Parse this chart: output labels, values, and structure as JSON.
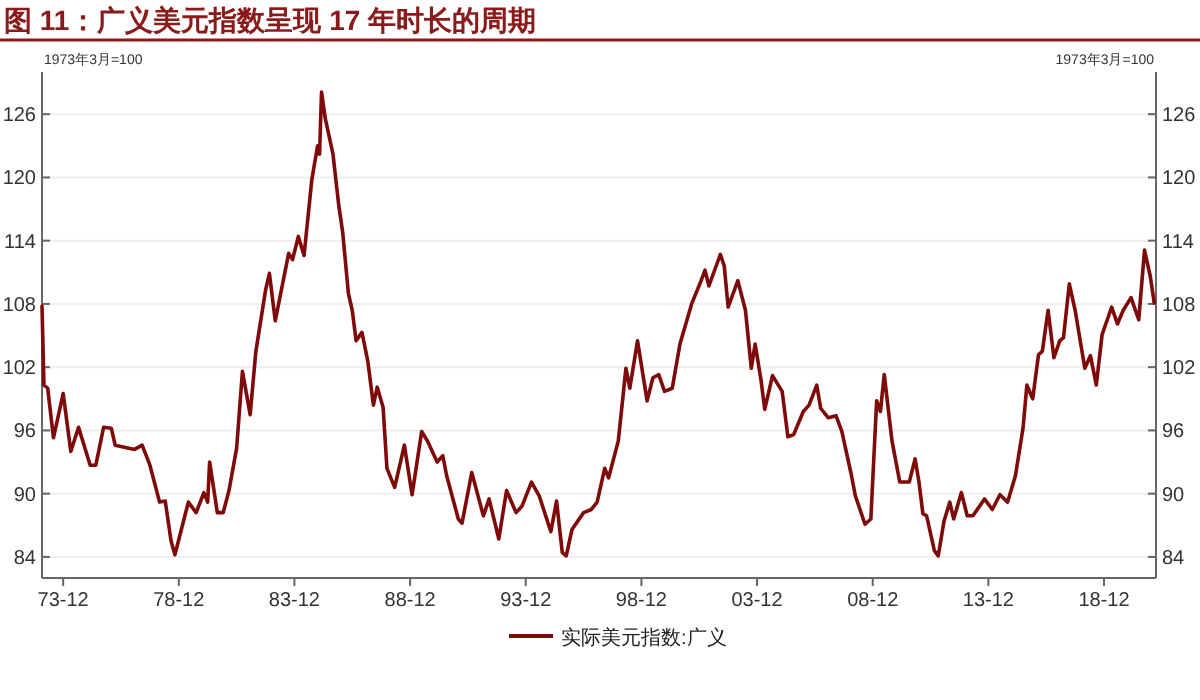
{
  "chart_data": {
    "type": "line",
    "title": "图 11：广义美元指数呈现 17 年时长的周期",
    "ylabel": "1973年3月=100",
    "y2label": "1973年3月=100",
    "x": [
      "1973-01",
      "1973-02",
      "1973-04",
      "1973-07",
      "1973-12",
      "1974-04",
      "1974-08",
      "1975-02",
      "1975-05",
      "1975-09",
      "1976-01",
      "1976-03",
      "1977-01",
      "1977-05",
      "1977-09",
      "1978-02",
      "1978-05",
      "1978-08",
      "1978-10",
      "1979-05",
      "1979-09",
      "1980-01",
      "1980-03",
      "1980-04",
      "1980-08",
      "1980-11",
      "1981-02",
      "1981-06",
      "1981-09",
      "1982-01",
      "1982-04",
      "1982-09",
      "1982-11",
      "1983-02",
      "1983-09",
      "1983-11",
      "1984-02",
      "1984-05",
      "1984-09",
      "1984-12",
      "1985-01",
      "1985-02",
      "1985-04",
      "1985-08",
      "1985-11",
      "1986-01",
      "1986-04",
      "1986-06",
      "1986-08",
      "1986-11",
      "1987-02",
      "1987-05",
      "1987-07",
      "1987-10",
      "1987-12",
      "1988-04",
      "1988-09",
      "1989-01",
      "1989-06",
      "1989-09",
      "1990-02",
      "1990-05",
      "1990-07",
      "1991-01",
      "1991-03",
      "1991-08",
      "1992-02",
      "1992-05",
      "1992-10",
      "1993-02",
      "1993-07",
      "1993-10",
      "1994-03",
      "1994-07",
      "1995-01",
      "1995-04",
      "1995-07",
      "1995-09",
      "1995-12",
      "1996-06",
      "1996-10",
      "1997-01",
      "1997-05",
      "1997-07",
      "1997-12",
      "1998-04",
      "1998-06",
      "1998-10",
      "1999-03",
      "1999-06",
      "1999-09",
      "1999-12",
      "2000-04",
      "2000-08",
      "2001-02",
      "2001-07",
      "2001-09",
      "2001-11",
      "2002-05",
      "2002-07",
      "2002-09",
      "2003-02",
      "2003-06",
      "2003-09",
      "2003-11",
      "2004-02",
      "2004-04",
      "2004-08",
      "2005-01",
      "2005-04",
      "2005-07",
      "2005-12",
      "2006-03",
      "2006-07",
      "2006-09",
      "2007-01",
      "2007-05",
      "2007-08",
      "2008-01",
      "2008-03",
      "2008-08",
      "2008-11",
      "2009-02",
      "2009-04",
      "2009-06",
      "2009-10",
      "2010-02",
      "2010-07",
      "2010-10",
      "2010-12",
      "2011-02",
      "2011-04",
      "2011-08",
      "2011-10",
      "2012-01",
      "2012-04",
      "2012-06",
      "2012-10",
      "2013-01",
      "2013-04",
      "2013-10",
      "2014-02",
      "2014-06",
      "2014-10",
      "2015-02",
      "2015-06",
      "2015-08",
      "2015-11",
      "2016-02",
      "2016-04",
      "2016-07",
      "2016-10",
      "2017-01",
      "2017-03",
      "2017-06",
      "2017-09",
      "2018-02",
      "2018-05",
      "2018-08",
      "2018-11",
      "2019-04",
      "2019-07",
      "2019-10",
      "2020-02",
      "2020-06",
      "2020-09",
      "2020-12",
      "2021-02"
    ],
    "series": [
      {
        "name": "实际美元指数:广义",
        "color": "#7f0a0a",
        "values": [
          107.8,
          100.3,
          100,
          95.3,
          99.5,
          94,
          96.3,
          92.7,
          92.7,
          96.3,
          96.2,
          94.6,
          94.2,
          94.6,
          92.7,
          89.2,
          89.3,
          85.5,
          84.2,
          89.2,
          88.2,
          90.1,
          89.2,
          93,
          88.2,
          88.2,
          90.3,
          94.3,
          101.6,
          97.5,
          103.5,
          109.3,
          110.9,
          106.4,
          112.8,
          112.2,
          114.4,
          112.6,
          119.8,
          123,
          122.2,
          128.1,
          125.6,
          122.2,
          117.3,
          114.8,
          109,
          107.4,
          104.5,
          105.3,
          102.6,
          98.4,
          100.1,
          98.2,
          92.4,
          90.6,
          94.6,
          89.9,
          95.9,
          95,
          93,
          93.6,
          91.7,
          87.6,
          87.2,
          92,
          87.9,
          89.5,
          85.7,
          90.3,
          88.2,
          88.8,
          91.1,
          89.8,
          86.4,
          89.3,
          84.4,
          84.1,
          86.6,
          88.2,
          88.5,
          89.2,
          92.4,
          91.5,
          95,
          101.9,
          100,
          104.5,
          98.8,
          101,
          101.3,
          99.7,
          100,
          104.2,
          108,
          110.2,
          111.2,
          109.7,
          112.7,
          111.6,
          107.7,
          110.2,
          107.4,
          101.9,
          104.2,
          100.8,
          98,
          101.2,
          99.7,
          95.4,
          95.6,
          97.8,
          98.4,
          100.3,
          98.1,
          97.2,
          97.4,
          95.9,
          91.7,
          89.8,
          87.1,
          87.6,
          98.8,
          97.8,
          101.3,
          95,
          91.1,
          91.1,
          93.3,
          91.1,
          88.1,
          87.9,
          84.6,
          84.1,
          87.4,
          89.2,
          87.6,
          90.1,
          87.9,
          87.9,
          89.5,
          88.5,
          89.9,
          89.2,
          91.7,
          96.2,
          100.3,
          99,
          103.2,
          103.5,
          107.4,
          102.9,
          104.5,
          104.8,
          109.9,
          107.4,
          101.9,
          103.1,
          100.3,
          105.1,
          107.7,
          106.1,
          107.4,
          108.6,
          106.5,
          113.1,
          110.6,
          108.1
        ]
      }
    ],
    "xlim": [
      "1973-01",
      "2021-03"
    ],
    "xticks": [
      {
        "value": "1973-12",
        "label": "73-12"
      },
      {
        "value": "1978-12",
        "label": "78-12"
      },
      {
        "value": "1983-12",
        "label": "83-12"
      },
      {
        "value": "1988-12",
        "label": "88-12"
      },
      {
        "value": "1993-12",
        "label": "93-12"
      },
      {
        "value": "1998-12",
        "label": "98-12"
      },
      {
        "value": "2003-12",
        "label": "03-12"
      },
      {
        "value": "2008-12",
        "label": "08-12"
      },
      {
        "value": "2013-12",
        "label": "13-12"
      },
      {
        "value": "2018-12",
        "label": "18-12"
      }
    ],
    "ylim": [
      82,
      130
    ],
    "yticks": [
      84,
      90,
      96,
      102,
      108,
      114,
      120,
      126
    ],
    "y2lim": [
      82,
      130
    ],
    "y2ticks": [
      84,
      90,
      96,
      102,
      108,
      114,
      120,
      126
    ],
    "grid": "y",
    "legend": "bottom",
    "marker": "none",
    "line_style": "solid"
  }
}
